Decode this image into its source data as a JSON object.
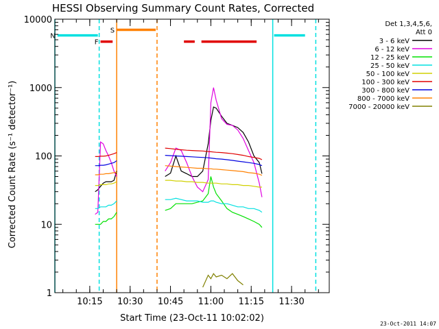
{
  "chart_data": {
    "type": "line",
    "title": "HESSI Observing Summary Count Rates, Corrected",
    "xlabel": "Start Time (23-Oct-11 10:02:02)",
    "ylabel": "Corrected Count Rate (s⁻¹ detector⁻¹)",
    "x_range": [
      "10:02:02",
      "11:44:00"
    ],
    "x_ticks": [
      "10:15",
      "10:30",
      "10:45",
      "11:00",
      "11:15",
      "11:30"
    ],
    "yscale": "log",
    "ylim": [
      1,
      10000
    ],
    "y_ticks": [
      "1",
      "10",
      "100",
      "1000",
      "10000"
    ],
    "timestamp": "23-Oct-2011 14:07",
    "legend": {
      "placement": "right",
      "header": [
        "Det 1,3,4,5,6,",
        "Att 0"
      ],
      "entries": [
        {
          "label": "3 - 6 keV",
          "color": "#000000"
        },
        {
          "label": "6 - 12 keV",
          "color": "#e000e0"
        },
        {
          "label": "12 - 25 keV",
          "color": "#00e000"
        },
        {
          "label": "25 - 50 keV",
          "color": "#00e0e0"
        },
        {
          "label": "50 - 100 keV",
          "color": "#d0d000"
        },
        {
          "label": "100 - 300 keV",
          "color": "#e00000"
        },
        {
          "label": "300 - 800 keV",
          "color": "#0000e0"
        },
        {
          "label": "800 - 7000 keV",
          "color": "#ff8000"
        },
        {
          "label": "7000 - 20000 keV",
          "color": "#808000"
        }
      ]
    },
    "flags": [
      {
        "label": "F",
        "color": "#e00000",
        "value": 4700,
        "segments": [
          [
            "10:19:00",
            "10:23:30"
          ],
          [
            "10:50:00",
            "10:54:00"
          ],
          [
            "10:56:30",
            "11:17:00"
          ]
        ]
      },
      {
        "label": "N",
        "color": "#00e0e0",
        "value": 5800,
        "segments": [
          [
            "10:03:00",
            "10:18:00"
          ],
          [
            "11:23:30",
            "11:35:00"
          ]
        ]
      },
      {
        "label": "S",
        "color": "#ff8000",
        "value": 7000,
        "segments": [
          [
            "10:25:00",
            "10:39:30"
          ]
        ]
      }
    ],
    "vertical_lines": [
      {
        "time": "10:02:02",
        "color": "#00e0e0",
        "style": "solid"
      },
      {
        "time": "10:18:30",
        "color": "#00e0e0",
        "style": "dashed"
      },
      {
        "time": "10:25:00",
        "color": "#ff8000",
        "style": "solid"
      },
      {
        "time": "10:40:00",
        "color": "#ff8000",
        "style": "dashed"
      },
      {
        "time": "11:23:00",
        "color": "#00e0e0",
        "style": "solid"
      },
      {
        "time": "11:39:00",
        "color": "#00e0e0",
        "style": "dashed"
      }
    ],
    "x": [
      "10:15",
      "10:17",
      "10:18",
      "10:19",
      "10:20",
      "10:21",
      "10:22",
      "10:23",
      "10:24",
      "10:25",
      "10:42",
      "10:43",
      "10:45",
      "10:47",
      "10:49",
      "10:51",
      "10:53",
      "10:55",
      "10:57",
      "10:59",
      "11:00",
      "11:01",
      "11:02",
      "11:04",
      "11:06",
      "11:08",
      "11:10",
      "11:12",
      "11:14",
      "11:16",
      "11:18",
      "11:19"
    ],
    "series": [
      {
        "name": "3 - 6 keV",
        "color": "#000000",
        "values": [
          null,
          30,
          32,
          36,
          40,
          42,
          42,
          42,
          44,
          60,
          null,
          50,
          56,
          100,
          60,
          55,
          50,
          50,
          60,
          150,
          330,
          520,
          500,
          380,
          300,
          280,
          260,
          220,
          160,
          100,
          80,
          55
        ]
      },
      {
        "name": "6 - 12 keV",
        "color": "#e000e0",
        "values": [
          null,
          14,
          15,
          160,
          150,
          120,
          100,
          80,
          60,
          50,
          null,
          60,
          80,
          130,
          120,
          80,
          50,
          35,
          30,
          45,
          600,
          1000,
          650,
          350,
          290,
          280,
          240,
          180,
          120,
          80,
          40,
          25
        ]
      },
      {
        "name": "12 - 25 keV",
        "color": "#00e000",
        "values": [
          null,
          10,
          10,
          10,
          11,
          11,
          12,
          12,
          13,
          15,
          null,
          16,
          17,
          20,
          20,
          20,
          20,
          21,
          22,
          28,
          50,
          35,
          28,
          22,
          17,
          15,
          14,
          13,
          12,
          11,
          10,
          9
        ]
      },
      {
        "name": "25 - 50 keV",
        "color": "#00e0e0",
        "values": [
          null,
          17,
          17,
          18,
          18,
          18,
          19,
          19,
          20,
          22,
          null,
          23,
          23,
          24,
          23,
          22,
          22,
          22,
          21,
          21,
          22,
          22,
          21,
          20,
          20,
          19,
          18,
          18,
          17,
          17,
          16,
          15
        ]
      },
      {
        "name": "50 - 100 keV",
        "color": "#d0d000",
        "values": [
          null,
          37,
          37,
          38,
          38,
          38,
          39,
          39,
          40,
          42,
          null,
          44,
          44,
          43,
          43,
          42,
          42,
          41,
          41,
          40,
          40,
          40,
          40,
          39,
          39,
          38,
          38,
          37,
          37,
          36,
          35,
          35
        ]
      },
      {
        "name": "100 - 300 keV",
        "color": "#e00000",
        "values": [
          null,
          98,
          98,
          99,
          99,
          100,
          102,
          105,
          108,
          112,
          null,
          130,
          128,
          125,
          123,
          121,
          120,
          119,
          118,
          116,
          115,
          114,
          113,
          112,
          110,
          108,
          105,
          102,
          98,
          95,
          92,
          88
        ]
      },
      {
        "name": "300 - 800 keV",
        "color": "#0000e0",
        "values": [
          null,
          72,
          72,
          73,
          73,
          74,
          76,
          78,
          80,
          85,
          null,
          102,
          101,
          100,
          99,
          98,
          97,
          96,
          95,
          94,
          93,
          92,
          91,
          90,
          88,
          86,
          84,
          82,
          80,
          78,
          75,
          72
        ]
      },
      {
        "name": "800 - 7000 keV",
        "color": "#ff8000",
        "values": [
          null,
          53,
          53,
          54,
          54,
          55,
          55,
          56,
          57,
          58,
          null,
          72,
          71,
          70,
          69,
          68,
          67,
          66,
          66,
          65,
          65,
          64,
          64,
          63,
          62,
          61,
          60,
          59,
          57,
          56,
          54,
          52
        ]
      },
      {
        "name": "7000 - 20000 keV",
        "color": "#808000",
        "values": [
          null,
          null,
          null,
          null,
          null,
          null,
          null,
          null,
          null,
          null,
          null,
          null,
          null,
          null,
          null,
          null,
          null,
          null,
          1.2,
          1.8,
          1.6,
          1.9,
          1.7,
          1.8,
          1.6,
          1.9,
          1.5,
          1.3,
          null,
          null,
          null,
          null
        ]
      }
    ]
  }
}
